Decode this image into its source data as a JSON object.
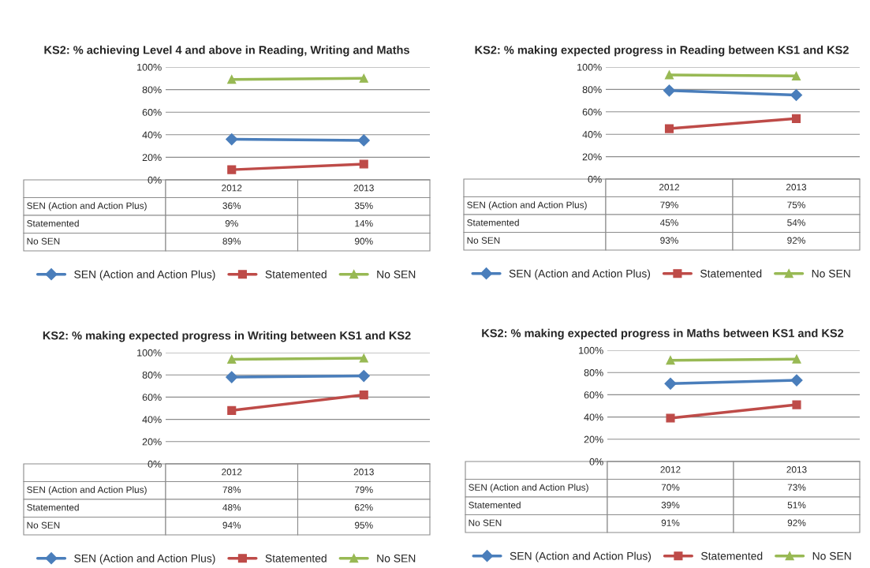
{
  "chart_data": [
    {
      "type": "line",
      "title": "KS2: % achieving Level 4 and above in Reading, Writing and Maths",
      "categories": [
        "2012",
        "2013"
      ],
      "ylim": [
        0,
        100
      ],
      "yticks": [
        {
          "value": 0,
          "label": "0%"
        },
        {
          "value": 20,
          "label": "20%"
        },
        {
          "value": 40,
          "label": "40%"
        },
        {
          "value": 60,
          "label": "60%"
        },
        {
          "value": 80,
          "label": "80%"
        },
        {
          "value": 100,
          "label": "100%"
        }
      ],
      "grid": "y",
      "legend": "bottom",
      "tick_labels": "y",
      "series": [
        {
          "name": "SEN (Action and Action Plus)",
          "color": "#4a7ebb",
          "marker": "diamond",
          "values": [
            36,
            35
          ],
          "value_labels": [
            "36%",
            "35%"
          ]
        },
        {
          "name": "Statemented",
          "color": "#be4b48",
          "marker": "square",
          "values": [
            9,
            14
          ],
          "value_labels": [
            "9%",
            "14%"
          ]
        },
        {
          "name": "No SEN",
          "color": "#98b954",
          "marker": "triangle",
          "values": [
            89,
            90
          ],
          "value_labels": [
            "89%",
            "90%"
          ]
        }
      ]
    },
    {
      "type": "line",
      "title": "KS2: % making expected progress in Reading between KS1 and KS2",
      "categories": [
        "2012",
        "2013"
      ],
      "ylim": [
        0,
        100
      ],
      "yticks": [
        {
          "value": 0,
          "label": "0%"
        },
        {
          "value": 20,
          "label": "20%"
        },
        {
          "value": 40,
          "label": "40%"
        },
        {
          "value": 60,
          "label": "60%"
        },
        {
          "value": 80,
          "label": "80%"
        },
        {
          "value": 100,
          "label": "100%"
        }
      ],
      "grid": "y",
      "legend": "bottom",
      "tick_labels": "y",
      "series": [
        {
          "name": "SEN (Action and Action Plus)",
          "color": "#4a7ebb",
          "marker": "diamond",
          "values": [
            79,
            75
          ],
          "value_labels": [
            "79%",
            "75%"
          ]
        },
        {
          "name": "Statemented",
          "color": "#be4b48",
          "marker": "square",
          "values": [
            45,
            54
          ],
          "value_labels": [
            "45%",
            "54%"
          ]
        },
        {
          "name": "No SEN",
          "color": "#98b954",
          "marker": "triangle",
          "values": [
            93,
            92
          ],
          "value_labels": [
            "93%",
            "92%"
          ]
        }
      ]
    },
    {
      "type": "line",
      "title": "KS2: % making expected progress in Writing between KS1 and KS2",
      "categories": [
        "2012",
        "2013"
      ],
      "ylim": [
        0,
        100
      ],
      "yticks": [
        {
          "value": 0,
          "label": "0%"
        },
        {
          "value": 20,
          "label": "20%"
        },
        {
          "value": 40,
          "label": "40%"
        },
        {
          "value": 60,
          "label": "60%"
        },
        {
          "value": 80,
          "label": "80%"
        },
        {
          "value": 100,
          "label": "100%"
        }
      ],
      "grid": "y",
      "legend": "bottom",
      "tick_labels": "y",
      "series": [
        {
          "name": "SEN (Action and Action Plus)",
          "color": "#4a7ebb",
          "marker": "diamond",
          "values": [
            78,
            79
          ],
          "value_labels": [
            "78%",
            "79%"
          ]
        },
        {
          "name": "Statemented",
          "color": "#be4b48",
          "marker": "square",
          "values": [
            48,
            62
          ],
          "value_labels": [
            "48%",
            "62%"
          ]
        },
        {
          "name": "No SEN",
          "color": "#98b954",
          "marker": "triangle",
          "values": [
            94,
            95
          ],
          "value_labels": [
            "94%",
            "95%"
          ]
        }
      ]
    },
    {
      "type": "line",
      "title": "KS2: % making expected progress in Maths between KS1 and KS2",
      "categories": [
        "2012",
        "2013"
      ],
      "ylim": [
        0,
        100
      ],
      "yticks": [
        {
          "value": 0,
          "label": "0%"
        },
        {
          "value": 20,
          "label": "20%"
        },
        {
          "value": 40,
          "label": "40%"
        },
        {
          "value": 60,
          "label": "60%"
        },
        {
          "value": 80,
          "label": "80%"
        },
        {
          "value": 100,
          "label": "100%"
        }
      ],
      "grid": "y",
      "legend": "bottom",
      "tick_labels": "y",
      "series": [
        {
          "name": "SEN (Action and Action Plus)",
          "color": "#4a7ebb",
          "marker": "diamond",
          "values": [
            70,
            73
          ],
          "value_labels": [
            "70%",
            "73%"
          ]
        },
        {
          "name": "Statemented",
          "color": "#be4b48",
          "marker": "square",
          "values": [
            39,
            51
          ],
          "value_labels": [
            "39%",
            "51%"
          ]
        },
        {
          "name": "No SEN",
          "color": "#98b954",
          "marker": "triangle",
          "values": [
            91,
            92
          ],
          "value_labels": [
            "91%",
            "92%"
          ]
        }
      ]
    }
  ]
}
